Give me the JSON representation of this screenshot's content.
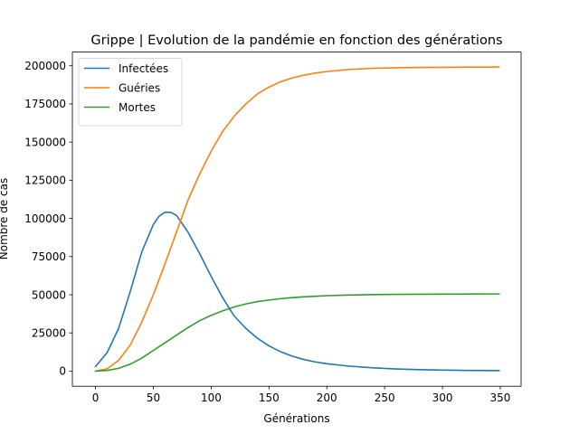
{
  "chart_data": {
    "type": "line",
    "title": "Grippe | Evolution de la pandémie en fonction des générations",
    "xlabel": "Générations",
    "ylabel": "Nombre de cas",
    "xlim": [
      -20,
      368
    ],
    "ylim": [
      -9950,
      208950
    ],
    "xticks": [
      0,
      50,
      100,
      150,
      200,
      250,
      300,
      350
    ],
    "yticks": [
      0,
      25000,
      50000,
      75000,
      100000,
      125000,
      150000,
      175000,
      200000
    ],
    "legend_position": "top-left",
    "grid": false,
    "series": [
      {
        "name": "Infectées",
        "color": "#1f77b4",
        "points": [
          [
            0,
            3000
          ],
          [
            10,
            12000
          ],
          [
            20,
            28000
          ],
          [
            30,
            52000
          ],
          [
            40,
            78000
          ],
          [
            50,
            96000
          ],
          [
            55,
            101500
          ],
          [
            60,
            104000
          ],
          [
            65,
            104000
          ],
          [
            70,
            102000
          ],
          [
            80,
            91000
          ],
          [
            90,
            77000
          ],
          [
            100,
            62000
          ],
          [
            110,
            48000
          ],
          [
            120,
            36000
          ],
          [
            130,
            28000
          ],
          [
            140,
            21500
          ],
          [
            150,
            16500
          ],
          [
            160,
            12700
          ],
          [
            170,
            9800
          ],
          [
            180,
            7600
          ],
          [
            190,
            6000
          ],
          [
            200,
            4800
          ],
          [
            220,
            3200
          ],
          [
            240,
            2100
          ],
          [
            260,
            1400
          ],
          [
            280,
            950
          ],
          [
            300,
            650
          ],
          [
            320,
            450
          ],
          [
            340,
            320
          ],
          [
            349,
            280
          ]
        ]
      },
      {
        "name": "Guéries",
        "color": "#ff7f0e",
        "points": [
          [
            0,
            0
          ],
          [
            10,
            1500
          ],
          [
            20,
            7000
          ],
          [
            30,
            17000
          ],
          [
            40,
            32000
          ],
          [
            50,
            50000
          ],
          [
            60,
            70000
          ],
          [
            70,
            91000
          ],
          [
            80,
            112000
          ],
          [
            90,
            129000
          ],
          [
            100,
            144000
          ],
          [
            110,
            157000
          ],
          [
            120,
            167000
          ],
          [
            130,
            175000
          ],
          [
            140,
            181500
          ],
          [
            150,
            186000
          ],
          [
            160,
            189500
          ],
          [
            170,
            192000
          ],
          [
            180,
            193800
          ],
          [
            190,
            195200
          ],
          [
            200,
            196200
          ],
          [
            220,
            197600
          ],
          [
            240,
            198300
          ],
          [
            260,
            198700
          ],
          [
            280,
            198900
          ],
          [
            300,
            199000
          ],
          [
            320,
            199100
          ],
          [
            340,
            199150
          ],
          [
            349,
            199200
          ]
        ]
      },
      {
        "name": "Mortes",
        "color": "#2ca02c",
        "points": [
          [
            0,
            0
          ],
          [
            10,
            400
          ],
          [
            20,
            1800
          ],
          [
            30,
            4500
          ],
          [
            40,
            8500
          ],
          [
            50,
            13500
          ],
          [
            60,
            18500
          ],
          [
            70,
            23500
          ],
          [
            80,
            28500
          ],
          [
            90,
            33000
          ],
          [
            100,
            36500
          ],
          [
            110,
            39500
          ],
          [
            120,
            42000
          ],
          [
            130,
            44000
          ],
          [
            140,
            45500
          ],
          [
            150,
            46500
          ],
          [
            160,
            47400
          ],
          [
            170,
            48100
          ],
          [
            180,
            48600
          ],
          [
            190,
            49000
          ],
          [
            200,
            49400
          ],
          [
            220,
            49800
          ],
          [
            240,
            50100
          ],
          [
            260,
            50250
          ],
          [
            280,
            50350
          ],
          [
            300,
            50400
          ],
          [
            320,
            50450
          ],
          [
            340,
            50500
          ],
          [
            349,
            50500
          ]
        ]
      }
    ]
  }
}
